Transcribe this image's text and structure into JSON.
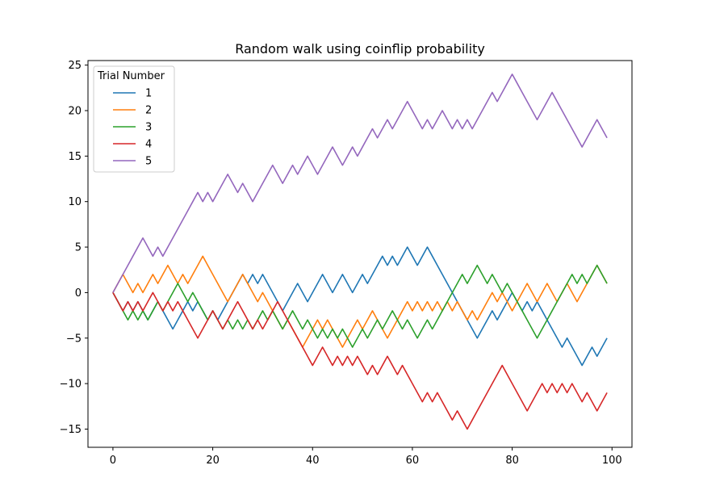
{
  "chart_data": {
    "type": "line",
    "title": "Random walk using coinflip probability",
    "xlabel": "",
    "ylabel": "",
    "xlim": [
      -5,
      104
    ],
    "ylim": [
      -17,
      25.5
    ],
    "xticks": [
      0,
      20,
      40,
      60,
      80,
      100
    ],
    "yticks": [
      -15,
      -10,
      -5,
      0,
      5,
      10,
      15,
      20,
      25
    ],
    "xtick_labels": [
      "0",
      "20",
      "40",
      "60",
      "80",
      "100"
    ],
    "ytick_labels": [
      "−15",
      "−10",
      "−5",
      "0",
      "5",
      "10",
      "15",
      "20",
      "25"
    ],
    "grid": false,
    "legend": {
      "title": "Trial Number",
      "placement": "top-left"
    },
    "series": [
      {
        "name": "1",
        "color": "#1f77b4",
        "values": [
          0,
          -1,
          -2,
          -1,
          -2,
          -1,
          -2,
          -3,
          -2,
          -1,
          -2,
          -3,
          -4,
          -3,
          -2,
          -1,
          -2,
          -1,
          -2,
          -3,
          -2,
          -3,
          -2,
          -1,
          0,
          1,
          2,
          1,
          2,
          1,
          2,
          1,
          0,
          -1,
          -2,
          -1,
          0,
          1,
          0,
          -1,
          0,
          1,
          2,
          1,
          0,
          1,
          2,
          1,
          0,
          1,
          2,
          1,
          2,
          3,
          4,
          3,
          4,
          3,
          4,
          5,
          4,
          3,
          4,
          5,
          4,
          3,
          2,
          1,
          0,
          -1,
          -2,
          -3,
          -4,
          -5,
          -4,
          -3,
          -2,
          -3,
          -2,
          -1,
          0,
          -1,
          -2,
          -1,
          -2,
          -1,
          -2,
          -3,
          -4,
          -5,
          -6,
          -5,
          -6,
          -7,
          -8,
          -7,
          -6,
          -7,
          -6,
          -5
        ]
      },
      {
        "name": "2",
        "color": "#ff7f0e",
        "values": [
          0,
          1,
          2,
          1,
          0,
          1,
          0,
          1,
          2,
          1,
          2,
          3,
          2,
          1,
          2,
          1,
          2,
          3,
          4,
          3,
          2,
          1,
          0,
          -1,
          0,
          1,
          2,
          1,
          0,
          -1,
          0,
          -1,
          -2,
          -3,
          -4,
          -3,
          -4,
          -5,
          -6,
          -5,
          -4,
          -3,
          -4,
          -3,
          -4,
          -5,
          -6,
          -5,
          -4,
          -3,
          -4,
          -3,
          -2,
          -3,
          -4,
          -5,
          -4,
          -3,
          -2,
          -1,
          -2,
          -1,
          -2,
          -1,
          -2,
          -1,
          -2,
          -1,
          -2,
          -1,
          -2,
          -3,
          -2,
          -3,
          -2,
          -1,
          0,
          -1,
          0,
          -1,
          -2,
          -1,
          0,
          1,
          0,
          -1,
          0,
          1,
          0,
          -1,
          0,
          1,
          0,
          -1,
          0,
          1,
          2,
          3,
          2,
          1
        ]
      },
      {
        "name": "3",
        "color": "#2ca02c",
        "values": [
          0,
          -1,
          -2,
          -3,
          -2,
          -3,
          -2,
          -3,
          -2,
          -1,
          -2,
          -1,
          0,
          1,
          0,
          -1,
          0,
          -1,
          -2,
          -3,
          -2,
          -3,
          -4,
          -3,
          -4,
          -3,
          -4,
          -3,
          -4,
          -3,
          -2,
          -3,
          -2,
          -3,
          -4,
          -3,
          -2,
          -3,
          -4,
          -3,
          -4,
          -5,
          -4,
          -5,
          -4,
          -5,
          -4,
          -5,
          -6,
          -5,
          -4,
          -5,
          -4,
          -3,
          -4,
          -3,
          -2,
          -3,
          -4,
          -3,
          -4,
          -5,
          -4,
          -3,
          -4,
          -3,
          -2,
          -1,
          0,
          1,
          2,
          1,
          2,
          3,
          2,
          1,
          2,
          1,
          0,
          1,
          0,
          -1,
          -2,
          -3,
          -4,
          -5,
          -4,
          -3,
          -2,
          -1,
          0,
          1,
          2,
          1,
          2,
          1,
          2,
          3,
          2,
          1
        ]
      },
      {
        "name": "4",
        "color": "#d62728",
        "values": [
          0,
          -1,
          -2,
          -1,
          -2,
          -1,
          -2,
          -1,
          0,
          -1,
          -2,
          -1,
          -2,
          -1,
          -2,
          -3,
          -4,
          -5,
          -4,
          -3,
          -2,
          -3,
          -4,
          -3,
          -2,
          -1,
          -2,
          -3,
          -4,
          -3,
          -4,
          -3,
          -2,
          -1,
          -2,
          -3,
          -4,
          -5,
          -6,
          -7,
          -8,
          -7,
          -6,
          -7,
          -8,
          -7,
          -8,
          -7,
          -8,
          -7,
          -8,
          -9,
          -8,
          -9,
          -8,
          -7,
          -8,
          -9,
          -8,
          -9,
          -10,
          -11,
          -12,
          -11,
          -12,
          -11,
          -12,
          -13,
          -14,
          -13,
          -14,
          -15,
          -14,
          -13,
          -12,
          -11,
          -10,
          -9,
          -8,
          -9,
          -10,
          -11,
          -12,
          -13,
          -12,
          -11,
          -10,
          -11,
          -10,
          -11,
          -10,
          -11,
          -10,
          -11,
          -12,
          -11,
          -12,
          -13,
          -12,
          -11
        ]
      },
      {
        "name": "5",
        "color": "#9467bd",
        "values": [
          0,
          1,
          2,
          3,
          4,
          5,
          6,
          5,
          4,
          5,
          4,
          5,
          6,
          7,
          8,
          9,
          10,
          11,
          10,
          11,
          10,
          11,
          12,
          13,
          12,
          11,
          12,
          11,
          10,
          11,
          12,
          13,
          14,
          13,
          12,
          13,
          14,
          13,
          14,
          15,
          14,
          13,
          14,
          15,
          16,
          15,
          14,
          15,
          16,
          15,
          16,
          17,
          18,
          17,
          18,
          19,
          18,
          19,
          20,
          21,
          20,
          19,
          18,
          19,
          18,
          19,
          20,
          19,
          18,
          19,
          18,
          19,
          18,
          19,
          20,
          21,
          22,
          21,
          22,
          23,
          24,
          23,
          22,
          21,
          20,
          19,
          20,
          21,
          22,
          21,
          20,
          19,
          18,
          17,
          16,
          17,
          18,
          19,
          18,
          17
        ]
      }
    ]
  }
}
